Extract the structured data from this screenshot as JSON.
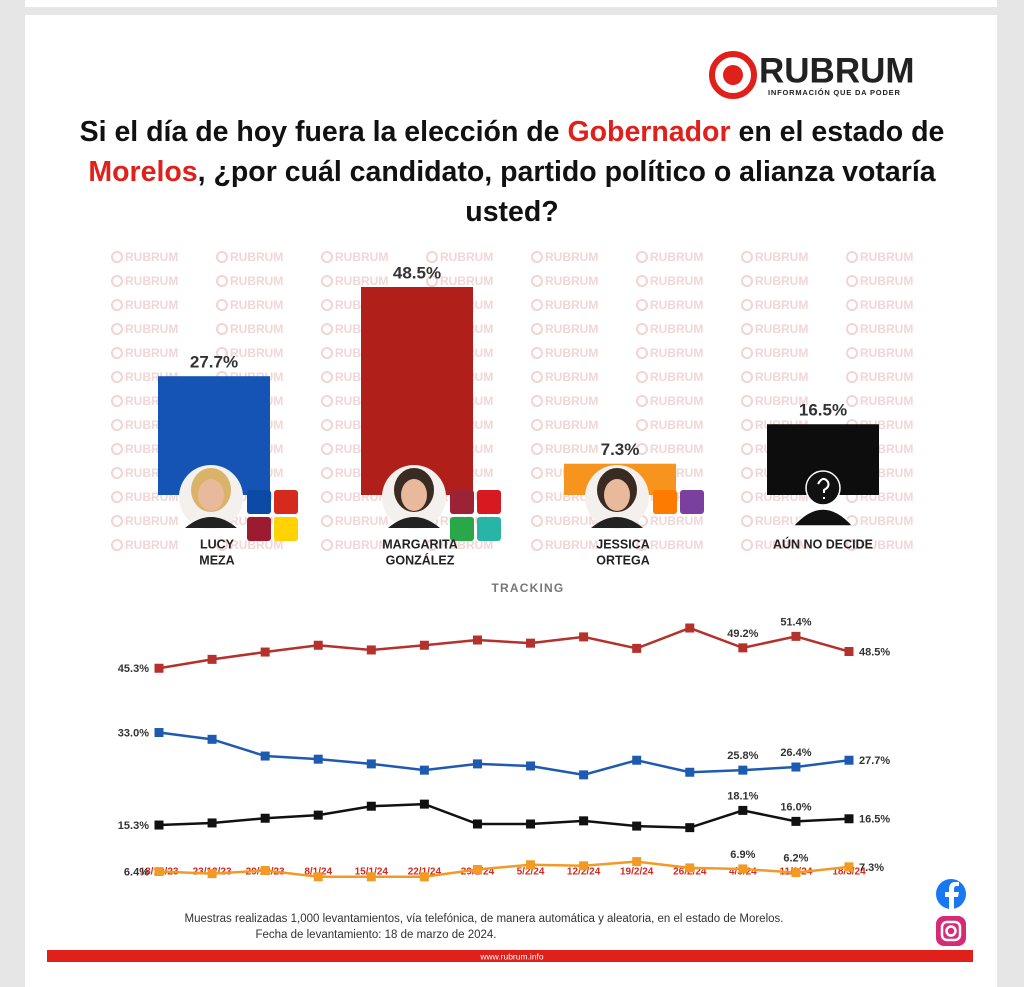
{
  "header": {
    "logo": "RUBRUM",
    "tagline": "INFORMACIÓN QUE DA PODER",
    "title": [
      "Si el día de hoy fuera la elección de ",
      "Gobernador",
      " en el estado de ",
      "Morelos",
      ", ¿por cuál candidato, partido político o alianza votaría usted?"
    ]
  },
  "watermark": "RUBRUM",
  "chart_data": [
    {
      "type": "bar",
      "categories": [
        [
          "LUCY",
          "MEZA"
        ],
        [
          "MARGARITA",
          "GONZÁLEZ"
        ],
        [
          "JESSICA",
          "ORTEGA"
        ],
        [
          "AÚN NO DECIDE"
        ]
      ],
      "values": [
        27.7,
        48.5,
        7.3,
        16.5
      ],
      "value_labels": [
        "27.7%",
        "48.5%",
        "7.3%",
        "16.5%"
      ],
      "colors": [
        "#1554b4",
        "#b01f1a",
        "#f7941d",
        "#0d0d0d"
      ]
    },
    {
      "type": "line",
      "title": "TRACKING",
      "categories": [
        "18/12/23",
        "23/12/23",
        "29/12/23",
        "8/1/24",
        "15/1/24",
        "22/1/24",
        "29/1/24",
        "5/2/24",
        "12/2/24",
        "19/2/24",
        "26/2/24",
        "4/3/24",
        "11/3/24",
        "18/3/24"
      ],
      "series": [
        {
          "color": "#b5312b",
          "values": [
            45.3,
            47.0,
            48.4,
            49.7,
            48.8,
            49.7,
            50.7,
            50.1,
            51.3,
            49.1,
            53.0,
            49.2,
            51.4,
            48.5
          ],
          "value_labels": [
            "45.3%",
            null,
            null,
            null,
            null,
            null,
            null,
            null,
            null,
            null,
            null,
            "49.2%",
            "51.4%",
            "48.5%"
          ]
        },
        {
          "color": "#1e5bb0",
          "values": [
            33.0,
            31.7,
            28.5,
            27.9,
            27.0,
            25.8,
            27.0,
            26.6,
            24.9,
            27.7,
            25.4,
            25.8,
            26.4,
            27.7
          ],
          "value_labels": [
            "33.0%",
            null,
            null,
            null,
            null,
            null,
            null,
            null,
            null,
            null,
            null,
            "25.8%",
            "26.4%",
            "27.7%"
          ]
        },
        {
          "color": "#111111",
          "values": [
            15.3,
            15.7,
            16.6,
            17.2,
            18.9,
            19.3,
            15.5,
            15.5,
            16.1,
            15.1,
            14.8,
            18.1,
            16.0,
            16.5
          ],
          "value_labels": [
            "15.3%",
            null,
            null,
            null,
            null,
            null,
            null,
            null,
            null,
            null,
            null,
            "18.1%",
            "16.0%",
            "16.5%"
          ]
        },
        {
          "color": "#f39a24",
          "values": [
            6.4,
            6.0,
            6.6,
            5.4,
            5.4,
            5.4,
            6.8,
            7.7,
            7.5,
            8.3,
            7.1,
            6.9,
            6.2,
            7.3
          ],
          "value_labels": [
            "6.4%",
            null,
            null,
            null,
            null,
            null,
            null,
            null,
            null,
            null,
            null,
            "6.9%",
            "6.2%",
            "7.3%"
          ]
        }
      ]
    }
  ],
  "footer": {
    "note": [
      "Muestras realizadas 1,000 levantamientos, vía telefónica, de manera automática y aleatoria, en el estado de Morelos.",
      "Fecha de levantamiento: 18  de marzo de 2024."
    ],
    "url": "www.rubrum.info"
  }
}
